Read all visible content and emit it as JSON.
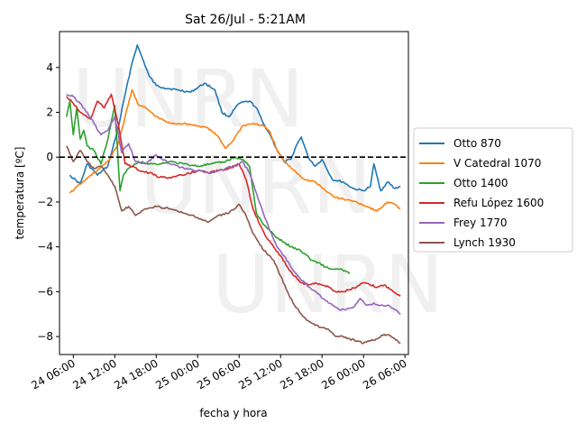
{
  "chart_data": {
    "type": "line",
    "title": "Sat 26/Jul - 5:21AM",
    "xlabel": "fecha y hora",
    "ylabel": "temperatura [ºC]",
    "ylim": [
      -8.8,
      5.6
    ],
    "xlim": [
      "2025-07-24T04:00",
      "2025-07-26T06:30"
    ],
    "yticks": [
      -8,
      -6,
      -4,
      -2,
      0,
      2,
      4
    ],
    "ytick_labels": [
      "−8",
      "−6",
      "−4",
      "−2",
      "0",
      "2",
      "4"
    ],
    "xticks": [
      "2025-07-24T06:00",
      "2025-07-24T12:00",
      "2025-07-24T18:00",
      "2025-07-25T00:00",
      "2025-07-25T06:00",
      "2025-07-25T12:00",
      "2025-07-25T18:00",
      "2025-07-26T00:00",
      "2025-07-26T06:00"
    ],
    "xtick_labels": [
      "24 06:00",
      "24 12:00",
      "24 18:00",
      "25 00:00",
      "25 06:00",
      "25 12:00",
      "25 18:00",
      "26 00:00",
      "26 06:00"
    ],
    "reference_line": {
      "y": 0,
      "style": "dashed",
      "color": "#000000"
    },
    "watermarks": [
      "UNRN",
      "UNRN",
      "UNRN"
    ],
    "legend_position": "right",
    "grid": false,
    "series": [
      {
        "name": "Otto 870",
        "color": "#1f77b4",
        "x": [
          "2025-07-24T05:30",
          "2025-07-24T07:00",
          "2025-07-24T08:00",
          "2025-07-24T09:30",
          "2025-07-24T11:00",
          "2025-07-24T12:30",
          "2025-07-24T13:30",
          "2025-07-24T14:30",
          "2025-07-24T15:15",
          "2025-07-24T16:00",
          "2025-07-24T17:00",
          "2025-07-24T18:00",
          "2025-07-24T19:00",
          "2025-07-24T21:00",
          "2025-07-24T23:00",
          "2025-07-25T01:00",
          "2025-07-25T02:30",
          "2025-07-25T03:30",
          "2025-07-25T04:30",
          "2025-07-25T06:00",
          "2025-07-25T07:30",
          "2025-07-25T08:30",
          "2025-07-25T09:30",
          "2025-07-25T10:30",
          "2025-07-25T11:30",
          "2025-07-25T12:30",
          "2025-07-25T13:30",
          "2025-07-25T14:15",
          "2025-07-25T15:00",
          "2025-07-25T16:00",
          "2025-07-25T17:00",
          "2025-07-25T18:00",
          "2025-07-25T19:30",
          "2025-07-25T21:00",
          "2025-07-25T22:30",
          "2025-07-26T00:00",
          "2025-07-26T01:00",
          "2025-07-26T01:30",
          "2025-07-26T02:30",
          "2025-07-26T03:30",
          "2025-07-26T04:30",
          "2025-07-26T05:21"
        ],
        "values": [
          -0.8,
          -1.2,
          -0.3,
          -0.8,
          -0.4,
          1.3,
          2.8,
          4.2,
          5.0,
          4.4,
          3.6,
          3.2,
          3.1,
          3.0,
          2.9,
          3.3,
          3.0,
          2.0,
          1.8,
          2.4,
          2.5,
          2.2,
          1.5,
          1.0,
          0.3,
          -0.2,
          -0.1,
          0.5,
          0.9,
          0.0,
          -0.4,
          -0.1,
          -1.0,
          -1.1,
          -1.4,
          -1.5,
          -1.3,
          -0.3,
          -1.5,
          -1.1,
          -1.4,
          -1.3
        ]
      },
      {
        "name": "V Catedral 1070",
        "color": "#ff7f0e",
        "x": [
          "2025-07-24T05:30",
          "2025-07-24T07:00",
          "2025-07-24T09:00",
          "2025-07-24T11:00",
          "2025-07-24T12:30",
          "2025-07-24T13:30",
          "2025-07-24T14:30",
          "2025-07-24T15:30",
          "2025-07-24T16:30",
          "2025-07-24T18:00",
          "2025-07-24T20:00",
          "2025-07-24T22:00",
          "2025-07-25T00:00",
          "2025-07-25T01:30",
          "2025-07-25T03:00",
          "2025-07-25T04:00",
          "2025-07-25T05:00",
          "2025-07-25T06:30",
          "2025-07-25T08:00",
          "2025-07-25T09:30",
          "2025-07-25T10:30",
          "2025-07-25T11:30",
          "2025-07-25T12:30",
          "2025-07-25T14:00",
          "2025-07-25T15:30",
          "2025-07-25T17:00",
          "2025-07-25T18:30",
          "2025-07-25T20:00",
          "2025-07-25T21:30",
          "2025-07-25T23:00",
          "2025-07-26T00:30",
          "2025-07-26T02:00",
          "2025-07-26T03:30",
          "2025-07-26T04:30",
          "2025-07-26T05:21"
        ],
        "values": [
          -1.6,
          -1.2,
          -0.7,
          -0.2,
          0.6,
          1.8,
          3.0,
          2.3,
          2.2,
          1.8,
          1.5,
          1.5,
          1.4,
          1.3,
          0.9,
          0.4,
          0.7,
          1.4,
          1.5,
          1.4,
          1.1,
          0.3,
          -0.2,
          -0.6,
          -1.0,
          -1.1,
          -1.5,
          -1.8,
          -1.9,
          -2.0,
          -2.2,
          -2.4,
          -2.0,
          -2.1,
          -2.3
        ]
      },
      {
        "name": "Otto 1400",
        "color": "#2ca02c",
        "x": [
          "2025-07-24T05:00",
          "2025-07-24T05:30",
          "2025-07-24T06:00",
          "2025-07-24T06:30",
          "2025-07-24T07:00",
          "2025-07-24T07:30",
          "2025-07-24T08:00",
          "2025-07-24T09:00",
          "2025-07-24T10:00",
          "2025-07-24T11:00",
          "2025-07-24T12:00",
          "2025-07-24T12:45",
          "2025-07-24T13:15",
          "2025-07-24T14:00",
          "2025-07-24T15:00",
          "2025-07-24T16:00",
          "2025-07-24T17:00",
          "2025-07-24T18:30",
          "2025-07-24T20:00",
          "2025-07-24T22:00",
          "2025-07-25T00:00",
          "2025-07-25T02:00",
          "2025-07-25T04:00",
          "2025-07-25T05:30",
          "2025-07-25T06:30",
          "2025-07-25T07:30",
          "2025-07-25T08:30",
          "2025-07-25T09:30",
          "2025-07-25T10:30",
          "2025-07-25T11:30",
          "2025-07-25T12:30",
          "2025-07-25T13:30",
          "2025-07-25T14:30",
          "2025-07-25T15:30",
          "2025-07-25T16:30",
          "2025-07-25T17:30",
          "2025-07-25T18:30",
          "2025-07-25T19:30",
          "2025-07-25T20:30",
          "2025-07-25T21:30",
          "2025-07-25T22:00"
        ],
        "values": [
          1.8,
          2.5,
          1.0,
          2.2,
          0.8,
          1.2,
          0.5,
          0.3,
          -0.3,
          0.8,
          2.3,
          -1.5,
          -0.8,
          -0.5,
          -0.3,
          -0.2,
          -0.3,
          -0.3,
          -0.2,
          -0.3,
          -0.4,
          -0.3,
          -0.2,
          0.0,
          -0.1,
          -0.4,
          -2.5,
          -3.0,
          -3.3,
          -3.6,
          -3.8,
          -4.0,
          -4.1,
          -4.3,
          -4.6,
          -4.7,
          -4.9,
          -5.0,
          -5.0,
          -5.1,
          -5.2
        ]
      },
      {
        "name": "Refu López 1600",
        "color": "#d62728",
        "x": [
          "2025-07-24T05:00",
          "2025-07-24T06:00",
          "2025-07-24T07:00",
          "2025-07-24T08:30",
          "2025-07-24T09:30",
          "2025-07-24T10:30",
          "2025-07-24T11:30",
          "2025-07-24T12:30",
          "2025-07-24T13:30",
          "2025-07-24T14:30",
          "2025-07-24T15:30",
          "2025-07-24T17:00",
          "2025-07-24T18:30",
          "2025-07-24T20:00",
          "2025-07-24T22:00",
          "2025-07-25T00:00",
          "2025-07-25T01:30",
          "2025-07-25T03:00",
          "2025-07-25T04:30",
          "2025-07-25T06:00",
          "2025-07-25T07:00",
          "2025-07-25T08:00",
          "2025-07-25T09:00",
          "2025-07-25T10:00",
          "2025-07-25T11:00",
          "2025-07-25T12:00",
          "2025-07-25T13:00",
          "2025-07-25T14:00",
          "2025-07-25T15:00",
          "2025-07-25T16:00",
          "2025-07-25T17:00",
          "2025-07-25T18:00",
          "2025-07-25T19:00",
          "2025-07-25T20:00",
          "2025-07-25T21:00",
          "2025-07-25T22:00",
          "2025-07-25T23:00",
          "2025-07-26T00:00",
          "2025-07-26T01:00",
          "2025-07-26T02:00",
          "2025-07-26T03:00",
          "2025-07-26T04:00",
          "2025-07-26T05:21"
        ],
        "values": [
          2.7,
          2.4,
          2.0,
          1.7,
          2.5,
          2.2,
          2.8,
          1.5,
          -0.3,
          -0.4,
          -0.6,
          -0.7,
          -0.9,
          -0.9,
          -0.8,
          -0.6,
          -0.7,
          -0.6,
          -0.5,
          -0.3,
          -1.0,
          -2.3,
          -3.0,
          -3.6,
          -4.0,
          -4.4,
          -4.9,
          -5.3,
          -5.6,
          -5.7,
          -5.6,
          -5.7,
          -5.8,
          -6.0,
          -6.0,
          -5.9,
          -5.8,
          -5.6,
          -5.7,
          -5.8,
          -5.7,
          -5.9,
          -6.2
        ]
      },
      {
        "name": "Frey 1770",
        "color": "#9467bd",
        "x": [
          "2025-07-24T05:00",
          "2025-07-24T06:00",
          "2025-07-24T07:00",
          "2025-07-24T08:00",
          "2025-07-24T09:00",
          "2025-07-24T10:00",
          "2025-07-24T11:00",
          "2025-07-24T12:00",
          "2025-07-24T13:00",
          "2025-07-24T14:00",
          "2025-07-24T15:00",
          "2025-07-24T16:30",
          "2025-07-24T18:00",
          "2025-07-24T20:00",
          "2025-07-24T22:00",
          "2025-07-25T00:00",
          "2025-07-25T02:00",
          "2025-07-25T04:00",
          "2025-07-25T05:30",
          "2025-07-25T06:30",
          "2025-07-25T07:30",
          "2025-07-25T08:30",
          "2025-07-25T09:30",
          "2025-07-25T10:30",
          "2025-07-25T11:30",
          "2025-07-25T12:30",
          "2025-07-25T13:30",
          "2025-07-25T14:30",
          "2025-07-25T15:30",
          "2025-07-25T16:30",
          "2025-07-25T17:30",
          "2025-07-25T18:30",
          "2025-07-25T19:30",
          "2025-07-25T20:30",
          "2025-07-25T21:30",
          "2025-07-25T22:30",
          "2025-07-25T23:30",
          "2025-07-26T00:30",
          "2025-07-26T01:30",
          "2025-07-26T02:30",
          "2025-07-26T03:30",
          "2025-07-26T04:30",
          "2025-07-26T05:21"
        ],
        "values": [
          2.8,
          2.7,
          2.4,
          2.0,
          1.5,
          1.0,
          1.2,
          1.8,
          0.2,
          0.6,
          -0.2,
          -0.3,
          0.1,
          -0.3,
          -0.5,
          -0.6,
          -0.7,
          -0.5,
          -0.4,
          -0.2,
          -0.7,
          -1.6,
          -2.5,
          -3.3,
          -4.0,
          -4.4,
          -4.9,
          -5.3,
          -5.6,
          -5.9,
          -6.1,
          -6.4,
          -6.6,
          -6.8,
          -6.8,
          -6.7,
          -6.3,
          -6.6,
          -6.5,
          -6.6,
          -6.6,
          -6.8,
          -7.0
        ]
      },
      {
        "name": "Lynch 1930",
        "color": "#8c564b",
        "x": [
          "2025-07-24T05:00",
          "2025-07-24T06:00",
          "2025-07-24T07:00",
          "2025-07-24T08:00",
          "2025-07-24T09:00",
          "2025-07-24T10:00",
          "2025-07-24T11:00",
          "2025-07-24T12:00",
          "2025-07-24T13:00",
          "2025-07-24T14:00",
          "2025-07-24T15:00",
          "2025-07-24T16:30",
          "2025-07-24T18:00",
          "2025-07-24T20:00",
          "2025-07-24T22:00",
          "2025-07-25T00:00",
          "2025-07-25T01:30",
          "2025-07-25T03:00",
          "2025-07-25T04:30",
          "2025-07-25T06:00",
          "2025-07-25T07:00",
          "2025-07-25T08:00",
          "2025-07-25T09:00",
          "2025-07-25T10:00",
          "2025-07-25T11:00",
          "2025-07-25T12:00",
          "2025-07-25T13:00",
          "2025-07-25T14:00",
          "2025-07-25T15:00",
          "2025-07-25T16:00",
          "2025-07-25T17:00",
          "2025-07-25T18:00",
          "2025-07-25T19:00",
          "2025-07-25T20:00",
          "2025-07-25T21:00",
          "2025-07-25T22:00",
          "2025-07-25T23:00",
          "2025-07-26T00:00",
          "2025-07-26T01:00",
          "2025-07-26T02:00",
          "2025-07-26T03:00",
          "2025-07-26T04:00",
          "2025-07-26T05:21"
        ],
        "values": [
          0.5,
          -0.2,
          0.3,
          -0.2,
          -0.5,
          -0.4,
          -0.8,
          -1.3,
          -2.4,
          -2.2,
          -2.6,
          -2.3,
          -2.2,
          -2.3,
          -2.5,
          -2.7,
          -2.9,
          -2.6,
          -2.5,
          -2.1,
          -2.6,
          -3.4,
          -3.9,
          -4.3,
          -4.6,
          -5.3,
          -6.0,
          -6.6,
          -7.0,
          -7.3,
          -7.5,
          -7.6,
          -7.7,
          -8.0,
          -8.0,
          -8.1,
          -8.2,
          -8.3,
          -8.2,
          -8.1,
          -7.9,
          -8.0,
          -8.3
        ]
      }
    ]
  }
}
